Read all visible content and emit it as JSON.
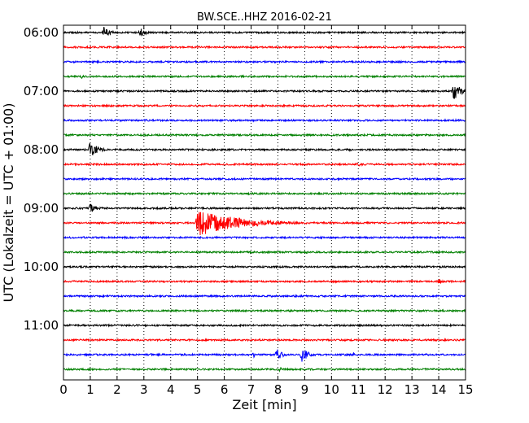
{
  "chart_data": {
    "type": "line",
    "title": "BW.SCE..HHZ 2016-02-21",
    "xlabel": "Zeit  [min]",
    "ylabel": "UTC (Lokalzeit = UTC + 01:00)",
    "xlim": [
      0,
      15
    ],
    "x_ticks": [
      "0",
      "1",
      "2",
      "3",
      "4",
      "5",
      "6",
      "7",
      "8",
      "9",
      "10",
      "11",
      "12",
      "13",
      "14",
      "15"
    ],
    "y_tick_labels": [
      "06:00",
      "07:00",
      "08:00",
      "09:00",
      "10:00",
      "11:00"
    ],
    "grid": "vertical dotted",
    "series_colors": [
      "#000000",
      "#ff0000",
      "#0000ff",
      "#008000"
    ],
    "traces": [
      {
        "start": "06:00",
        "color": "#000000",
        "events": [
          {
            "t": 1.5,
            "amp": 7,
            "dur": 0.7
          },
          {
            "t": 2.85,
            "amp": 6,
            "dur": 0.7
          }
        ]
      },
      {
        "start": "06:15",
        "color": "#ff0000",
        "events": []
      },
      {
        "start": "06:30",
        "color": "#0000ff",
        "events": []
      },
      {
        "start": "06:45",
        "color": "#008000",
        "events": [
          {
            "t": 0.7,
            "amp": 3,
            "dur": 0.2
          }
        ]
      },
      {
        "start": "07:00",
        "color": "#000000",
        "events": [
          {
            "t": 14.55,
            "amp": 12,
            "dur": 0.8
          }
        ]
      },
      {
        "start": "07:15",
        "color": "#ff0000",
        "events": []
      },
      {
        "start": "07:30",
        "color": "#0000ff",
        "events": []
      },
      {
        "start": "07:45",
        "color": "#008000",
        "events": []
      },
      {
        "start": "08:00",
        "color": "#000000",
        "events": [
          {
            "t": 1.0,
            "amp": 11,
            "dur": 0.8
          },
          {
            "t": 10.7,
            "amp": 2,
            "dur": 0.3
          }
        ]
      },
      {
        "start": "08:15",
        "color": "#ff0000",
        "events": [
          {
            "t": 11.0,
            "amp": 3,
            "dur": 0.4
          }
        ]
      },
      {
        "start": "08:30",
        "color": "#0000ff",
        "events": []
      },
      {
        "start": "08:45",
        "color": "#008000",
        "events": [
          {
            "t": 6.9,
            "amp": 2,
            "dur": 0.3
          },
          {
            "t": 9.8,
            "amp": 2,
            "dur": 0.4
          },
          {
            "t": 12.9,
            "amp": 2,
            "dur": 0.4
          }
        ]
      },
      {
        "start": "09:00",
        "color": "#000000",
        "events": [
          {
            "t": 1.0,
            "amp": 6,
            "dur": 0.7
          }
        ]
      },
      {
        "start": "09:15",
        "color": "#ff0000",
        "events": [
          {
            "t": 5.0,
            "amp": 17,
            "dur": 4.5
          }
        ]
      },
      {
        "start": "09:30",
        "color": "#0000ff",
        "events": []
      },
      {
        "start": "09:45",
        "color": "#008000",
        "events": [
          {
            "t": 9.1,
            "amp": 3,
            "dur": 0.1
          }
        ]
      },
      {
        "start": "10:00",
        "color": "#000000",
        "events": [
          {
            "t": 8.0,
            "amp": 1.5,
            "dur": 1.0
          }
        ]
      },
      {
        "start": "10:15",
        "color": "#ff0000",
        "events": [
          {
            "t": 14.0,
            "amp": 4,
            "dur": 0.6
          }
        ]
      },
      {
        "start": "10:30",
        "color": "#0000ff",
        "events": [
          {
            "t": 7.9,
            "amp": 2,
            "dur": 0.2
          }
        ]
      },
      {
        "start": "10:45",
        "color": "#008000",
        "events": []
      },
      {
        "start": "11:00",
        "color": "#000000",
        "events": []
      },
      {
        "start": "11:15",
        "color": "#ff0000",
        "events": []
      },
      {
        "start": "11:30",
        "color": "#0000ff",
        "events": [
          {
            "t": 3.3,
            "amp": 3,
            "dur": 0.2
          },
          {
            "t": 6.1,
            "amp": 2,
            "dur": 0.15
          },
          {
            "t": 7.1,
            "amp": 4,
            "dur": 0.15
          },
          {
            "t": 7.95,
            "amp": 9,
            "dur": 0.6
          },
          {
            "t": 8.9,
            "amp": 10,
            "dur": 0.7
          },
          {
            "t": 10.8,
            "amp": 4,
            "dur": 0.3
          }
        ]
      },
      {
        "start": "11:45",
        "color": "#008000",
        "events": [
          {
            "t": 8.1,
            "amp": 4,
            "dur": 0.1
          }
        ]
      }
    ]
  }
}
